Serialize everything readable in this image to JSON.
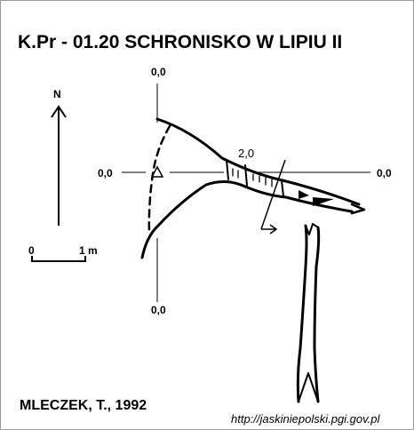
{
  "title": "K.Pr - 01.20 SCHRONISKO W LIPIU II",
  "north_label": "N",
  "scale": {
    "start_label": "0",
    "end_label": "1 m"
  },
  "axis_labels": {
    "top": "0,0",
    "left": "0,0",
    "right": "0,0",
    "bottom": "0,0"
  },
  "height_mark": "2,0",
  "author": "MLECZEK, T., 1992",
  "source_url": "http://jaskiniepolski.pgi.gov.pl",
  "colors": {
    "ink": "#000000",
    "background": "#ffffff",
    "frame": "#9a9a9a"
  }
}
